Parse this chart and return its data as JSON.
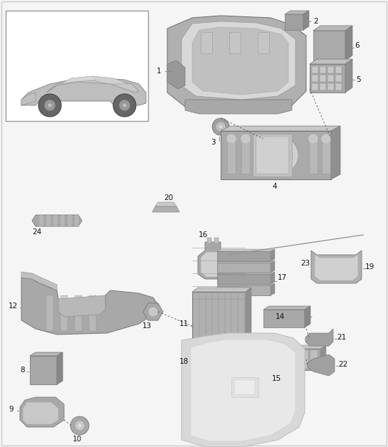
{
  "bg_color": "#f5f5f5",
  "border_color": "#aaaaaa",
  "fig_width": 5.45,
  "fig_height": 6.28,
  "dpi": 100,
  "gray1": "#aaaaaa",
  "gray2": "#c8c8c8",
  "gray3": "#888888",
  "gray4": "#e0e0e0",
  "gray5": "#b8b8b8",
  "gray6": "#d5d5d5",
  "white": "#ffffff",
  "label_fs": 7.5,
  "label_color": "#111111"
}
